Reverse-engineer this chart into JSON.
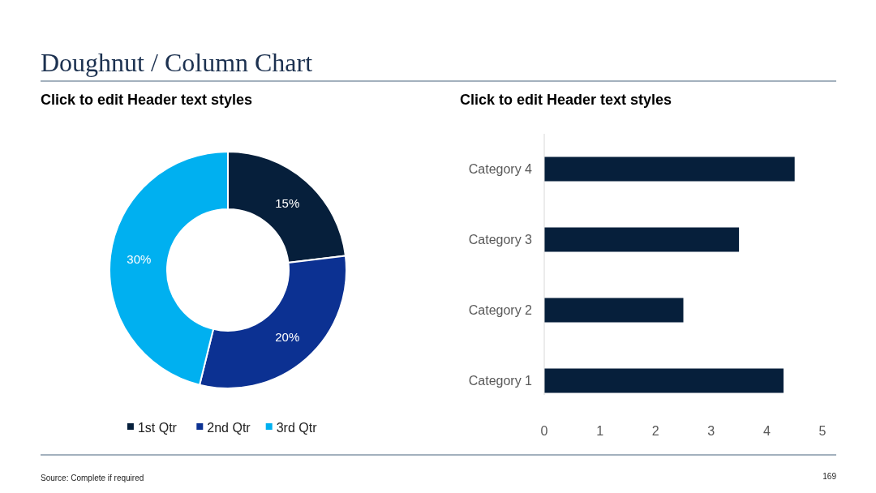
{
  "chart_data": [
    {
      "type": "donut",
      "title": "Click to edit Header text styles",
      "categories": [
        "1st Qtr",
        "2nd Qtr",
        "3rd Qtr"
      ],
      "values": [
        15,
        20,
        30
      ],
      "colors": [
        "#061f3b",
        "#0c3192",
        "#00b0f0"
      ],
      "value_labels": [
        "15%",
        "20%",
        "30%"
      ],
      "legend": "bottom",
      "annotations": [
        "Doughnut / Column Chart",
        "Source: Complete if required"
      ]
    },
    {
      "type": "bar",
      "orientation": "horizontal",
      "title": "Click to edit Header text styles",
      "categories": [
        "Category 4",
        "Category 3",
        "Category 2",
        "Category 1"
      ],
      "values": [
        4.5,
        3.5,
        2.5,
        4.3
      ],
      "color": "#061f3b",
      "xlim": [
        0,
        5
      ],
      "xticks": [
        0,
        1,
        2,
        3,
        4,
        5
      ],
      "grid": false,
      "annotations": [
        "169"
      ]
    }
  ]
}
